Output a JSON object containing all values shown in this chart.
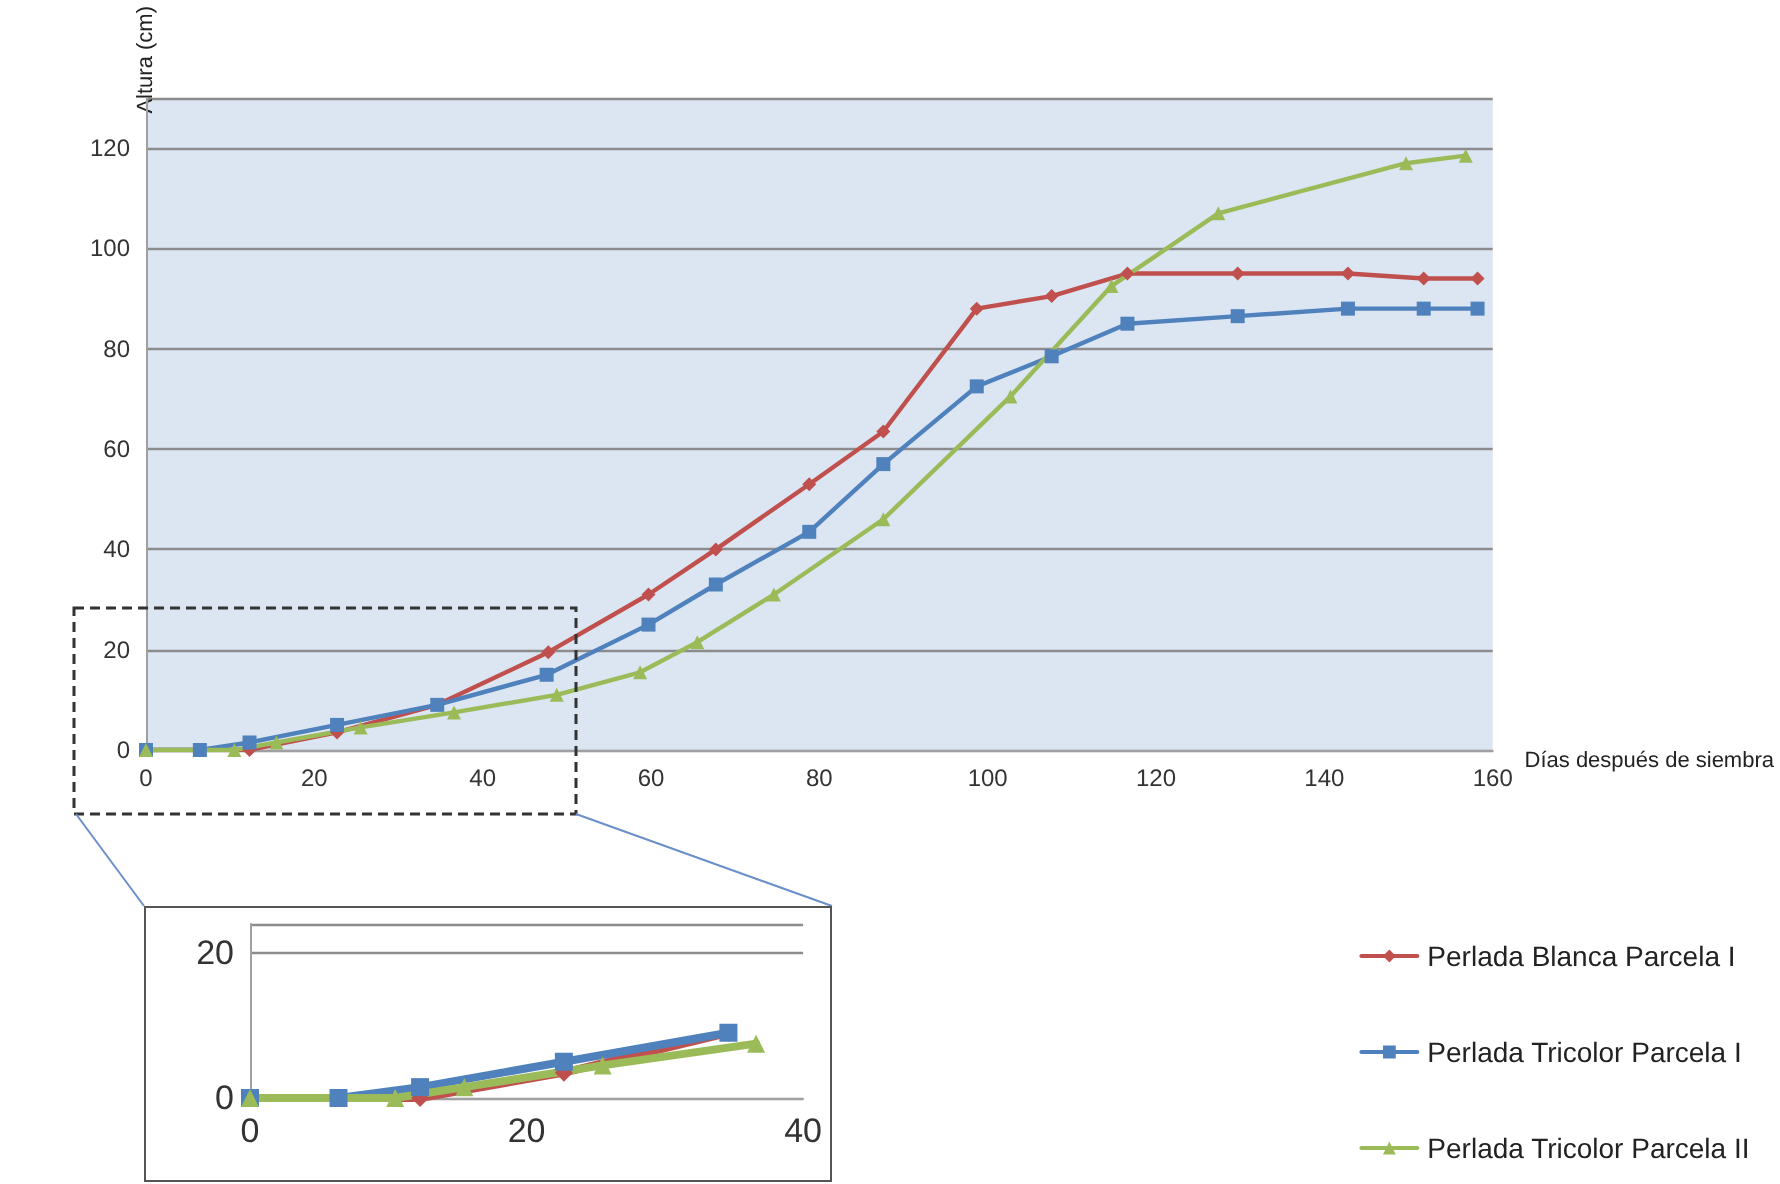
{
  "chart_data": [
    {
      "type": "line",
      "xlabel": "Días después de siembra",
      "ylabel": "Altura (cm)",
      "xlim": [
        0,
        160
      ],
      "ylim": [
        0,
        130
      ],
      "xticks": [
        0,
        20,
        40,
        60,
        80,
        100,
        120,
        140,
        160
      ],
      "yticks": [
        0,
        20,
        40,
        60,
        80,
        100,
        120
      ],
      "grid": "y",
      "legend": "bottom right",
      "line_style": "solid",
      "series": [
        {
          "name": "Perlada Blanca Parcela I",
          "color": "#c0504d",
          "marker": "diamond",
          "x": [
            0,
            6.4,
            12.3,
            22.7,
            34.6,
            47.8,
            59.7,
            67.7,
            78.8,
            87.6,
            98.7,
            107.6,
            116.6,
            129.7,
            142.8,
            151.8,
            158.2
          ],
          "values": [
            0,
            0,
            0,
            3.5,
            9,
            19.5,
            31,
            40,
            53,
            63.5,
            88,
            90.5,
            95,
            95,
            95,
            94,
            94
          ]
        },
        {
          "name": "Perlada Tricolor Parcela I",
          "color": "#4f81bd",
          "marker": "square",
          "x": [
            0,
            6.4,
            12.3,
            22.7,
            34.6,
            47.6,
            59.7,
            67.7,
            78.8,
            87.6,
            98.7,
            107.6,
            116.6,
            129.7,
            142.8,
            151.8,
            158.2
          ],
          "values": [
            0,
            0,
            1.5,
            5,
            9,
            15,
            25,
            33,
            43.5,
            57,
            72.5,
            78.5,
            85,
            86.5,
            88,
            88,
            88
          ]
        },
        {
          "name": "Perlada Tricolor Parcela II",
          "color": "#9bbb59",
          "marker": "triangle",
          "x": [
            0,
            10.5,
            15.5,
            25.5,
            36.6,
            48.8,
            58.7,
            65.5,
            74.6,
            87.6,
            102.7,
            114.7,
            127.4,
            149.7,
            156.8
          ],
          "values": [
            0,
            0,
            1.5,
            4.5,
            7.5,
            11,
            15.5,
            21.5,
            31,
            46,
            70.5,
            92.5,
            107,
            117,
            118.5
          ]
        }
      ]
    },
    {
      "type": "line",
      "xlim": [
        0,
        40
      ],
      "ylim": [
        0,
        24
      ],
      "xticks": [
        0,
        20,
        40
      ],
      "yticks": [
        0,
        20
      ],
      "grid": "y",
      "legend": false,
      "line_style": "solid",
      "series": [
        {
          "color": "#c0504d",
          "marker": "diamond",
          "x": [
            0,
            6.4,
            12.3,
            22.7,
            34.6
          ],
          "values": [
            0,
            0,
            0,
            3.5,
            9
          ]
        },
        {
          "color": "#4f81bd",
          "marker": "square",
          "x": [
            0,
            6.4,
            12.3,
            22.7,
            34.6
          ],
          "values": [
            0,
            0,
            1.5,
            5,
            9
          ]
        },
        {
          "color": "#9bbb59",
          "marker": "triangle",
          "x": [
            0,
            10.5,
            15.5,
            25.5,
            36.6
          ],
          "values": [
            0,
            0,
            1.5,
            4.5,
            7.5
          ]
        }
      ]
    }
  ]
}
